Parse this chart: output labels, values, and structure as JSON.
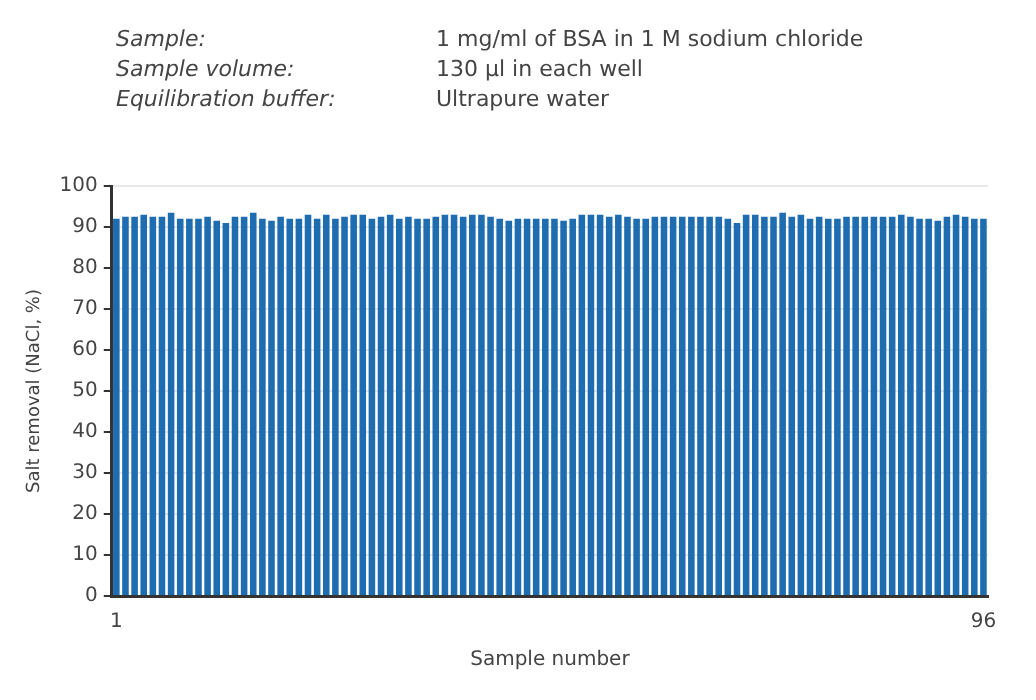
{
  "chart_data": {
    "type": "bar",
    "annotations": [
      "Sample: 1 mg/ml of BSA in 1 M sodium chloride",
      "Sample volume: 130 µl in each well",
      "Equilibration buffer: Ultrapure water"
    ],
    "xlabel": "Sample number",
    "ylabel": "Salt removal (NaCl, %)",
    "categories": [
      "1",
      null,
      null,
      null,
      null,
      null,
      null,
      null,
      null,
      null,
      null,
      null,
      null,
      null,
      null,
      null,
      null,
      null,
      null,
      null,
      null,
      null,
      null,
      null,
      null,
      null,
      null,
      null,
      null,
      null,
      null,
      null,
      null,
      null,
      null,
      null,
      null,
      null,
      null,
      null,
      null,
      null,
      null,
      null,
      null,
      null,
      null,
      null,
      null,
      null,
      null,
      null,
      null,
      null,
      null,
      null,
      null,
      null,
      null,
      null,
      null,
      null,
      null,
      null,
      null,
      null,
      null,
      null,
      null,
      null,
      null,
      null,
      null,
      null,
      null,
      null,
      null,
      null,
      null,
      null,
      null,
      null,
      null,
      null,
      null,
      null,
      null,
      null,
      null,
      null,
      null,
      null,
      null,
      null,
      null,
      "96"
    ],
    "values": [
      92,
      92.5,
      92.5,
      93,
      92.5,
      92.5,
      93.5,
      92,
      92,
      92,
      92.5,
      91.5,
      91,
      92.5,
      92.5,
      93.5,
      92,
      91.5,
      92.5,
      92,
      92,
      93,
      92,
      93,
      92,
      92.5,
      93,
      93,
      92,
      92.5,
      93,
      92,
      92.5,
      92,
      92,
      92.5,
      93,
      93,
      92.5,
      93,
      93,
      92.5,
      92,
      91.5,
      92,
      92,
      92,
      92,
      92,
      91.5,
      92,
      93,
      93,
      93,
      92.5,
      93,
      92.5,
      92,
      92,
      92.5,
      92.5,
      92.5,
      92.5,
      92.5,
      92.5,
      92.5,
      92.5,
      92,
      91,
      93,
      93,
      92.5,
      92.5,
      93.5,
      92.5,
      93,
      92,
      92.5,
      92,
      92,
      92.5,
      92.5,
      92.5,
      92.5,
      92.5,
      92.5,
      93,
      92.5,
      92,
      92,
      91.5,
      92.5,
      93,
      92.5,
      92,
      92
    ],
    "color": "#1f6db1",
    "ylim": [
      0,
      100
    ],
    "yticks": [
      0,
      10,
      20,
      30,
      40,
      50,
      60,
      70,
      80,
      90,
      100
    ],
    "grid": "y",
    "legend": false
  }
}
